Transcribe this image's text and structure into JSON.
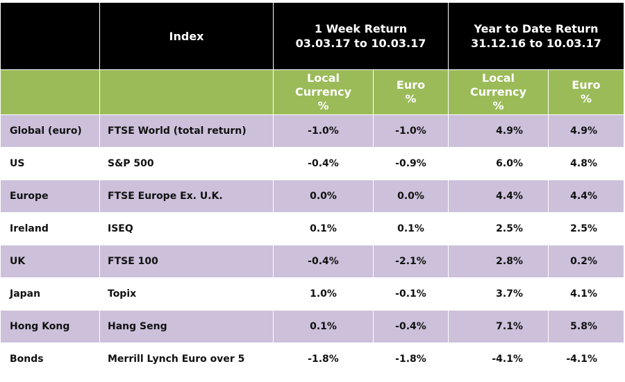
{
  "header": {
    "index_label": "Index",
    "week": {
      "line1": "1 Week Return",
      "line2": "03.03.17  to 10.03.17"
    },
    "ytd": {
      "line1": "Year to Date Return",
      "line2": "31.12.16  to 10.03.17"
    }
  },
  "subheader": {
    "local_currency": [
      "Local",
      "Currency",
      "%"
    ],
    "euro": [
      "Euro",
      "%"
    ]
  },
  "colors": {
    "header_bg": "#000000",
    "subheader_bg": "#9bbb59",
    "shaded_row": "#ccc0da"
  },
  "rows": [
    {
      "region": "Global (euro)",
      "index": "FTSE World (total return)",
      "week_local": "-1.0%",
      "week_euro": "-1.0%",
      "ytd_local": "4.9%",
      "ytd_euro": "4.9%"
    },
    {
      "region": "US",
      "index": "S&P 500",
      "week_local": "-0.4%",
      "week_euro": "-0.9%",
      "ytd_local": "6.0%",
      "ytd_euro": "4.8%"
    },
    {
      "region": "Europe",
      "index": "FTSE Europe Ex. U.K.",
      "week_local": "0.0%",
      "week_euro": "0.0%",
      "ytd_local": "4.4%",
      "ytd_euro": "4.4%"
    },
    {
      "region": "Ireland",
      "index": "ISEQ",
      "week_local": "0.1%",
      "week_euro": "0.1%",
      "ytd_local": "2.5%",
      "ytd_euro": "2.5%"
    },
    {
      "region": "UK",
      "index": "FTSE 100",
      "week_local": "-0.4%",
      "week_euro": "-2.1%",
      "ytd_local": "2.8%",
      "ytd_euro": "0.2%"
    },
    {
      "region": "Japan",
      "index": "Topix",
      "week_local": "1.0%",
      "week_euro": "-0.1%",
      "ytd_local": "3.7%",
      "ytd_euro": "4.1%"
    },
    {
      "region": "Hong Kong",
      "index": "Hang Seng",
      "week_local": "0.1%",
      "week_euro": "-0.4%",
      "ytd_local": "7.1%",
      "ytd_euro": "5.8%"
    },
    {
      "region": "Bonds",
      "index": "Merrill Lynch Euro over 5",
      "week_local": "-1.8%",
      "week_euro": "-1.8%",
      "ytd_local": "-4.1%",
      "ytd_euro": "-4.1%"
    }
  ]
}
